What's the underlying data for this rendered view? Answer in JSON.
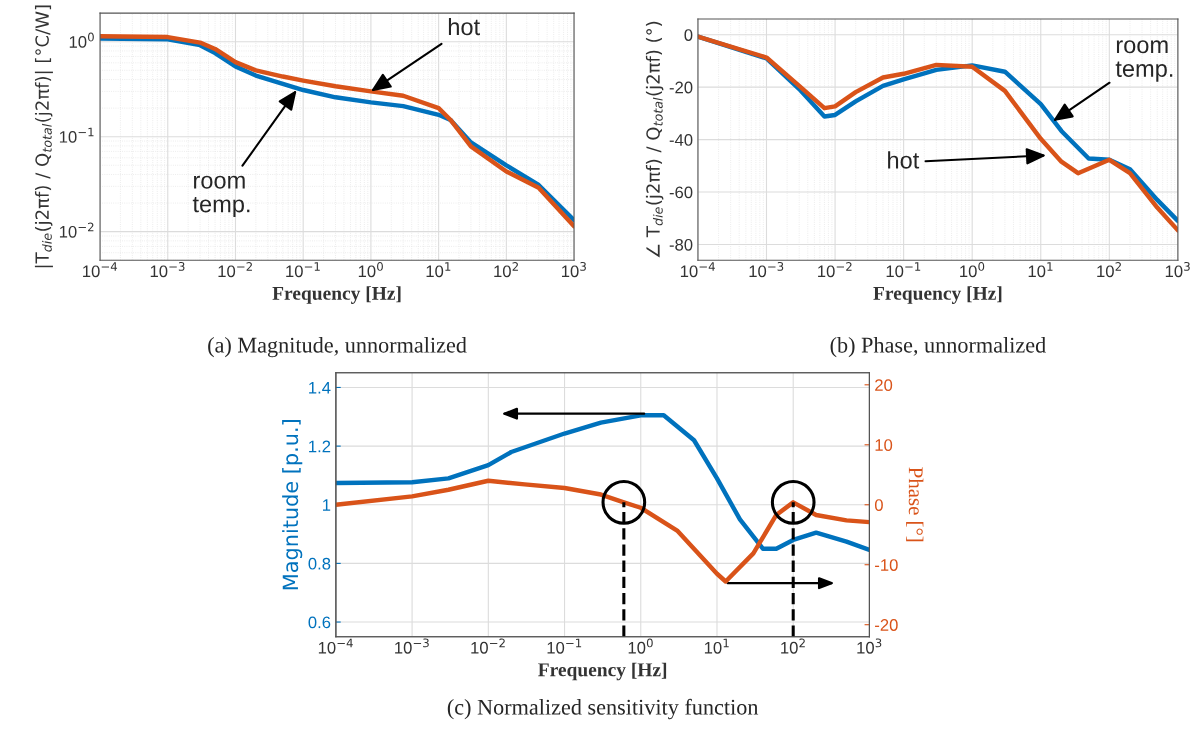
{
  "chart_data": [
    {
      "type": "line",
      "xlabel": "Frequency [Hz]",
      "ylabel": "|T$_{die}$(j2πf) / Q$_{total}$(j2πf)| [°C/W]",
      "log": "xy",
      "grid": true,
      "xlim": [
        0.0001,
        1000
      ],
      "ylim": [
        0.005,
        2
      ],
      "xticks": [
        {
          "value": 0.0001,
          "label": "10$^{−4}$"
        },
        {
          "value": 0.001,
          "label": "10$^{−3}$"
        },
        {
          "value": 0.01,
          "label": "10$^{−2}$"
        },
        {
          "value": 0.1,
          "label": "10$^{−1}$"
        },
        {
          "value": 1,
          "label": "10$^{0}$"
        },
        {
          "value": 10,
          "label": "10$^{1}$"
        },
        {
          "value": 100,
          "label": "10$^{2}$"
        },
        {
          "value": 1000,
          "label": "10$^{3}$"
        }
      ],
      "yticks": [
        {
          "value": 0.01,
          "label": "10$^{−2}$"
        },
        {
          "value": 0.1,
          "label": "10$^{−1}$"
        },
        {
          "value": 1,
          "label": "10$^{0}$"
        }
      ],
      "series": [
        {
          "color": "#0072bd",
          "x": [
            0.0001,
            0.001,
            0.003,
            0.005,
            0.01,
            0.02,
            0.05,
            0.1,
            0.3,
            1,
            3,
            10,
            15,
            30,
            100,
            300,
            1000
          ],
          "values": [
            1.08,
            1.06,
            0.92,
            0.76,
            0.55,
            0.44,
            0.36,
            0.31,
            0.26,
            0.23,
            0.21,
            0.17,
            0.15,
            0.087,
            0.05,
            0.031,
            0.0132
          ]
        },
        {
          "color": "#d95319",
          "x": [
            0.0001,
            0.001,
            0.003,
            0.005,
            0.01,
            0.02,
            0.05,
            0.1,
            0.3,
            1,
            3,
            10,
            15,
            30,
            100,
            300,
            1000
          ],
          "values": [
            1.14,
            1.12,
            0.98,
            0.84,
            0.61,
            0.5,
            0.43,
            0.39,
            0.34,
            0.3,
            0.27,
            0.2,
            0.15,
            0.079,
            0.043,
            0.029,
            0.0114
          ]
        }
      ],
      "annotations": [
        {
          "text": "hot",
          "x": 1,
          "y": 0.3
        },
        {
          "text": "room\ntemp.",
          "x": 0.08,
          "y": 0.31
        },
        "(a) Magnitude, unnormalized"
      ]
    },
    {
      "type": "line",
      "xlabel": "Frequency [Hz]",
      "ylabel": "∠ T$_{die}$(j2πf) / Q$_{total}$(j2πf) (°)",
      "log": "x",
      "grid": true,
      "xlim": [
        0.0001,
        1000
      ],
      "ylim": [
        -86,
        6
      ],
      "xticks": [
        {
          "value": 0.0001,
          "label": "10$^{−4}$"
        },
        {
          "value": 0.001,
          "label": "10$^{−3}$"
        },
        {
          "value": 0.01,
          "label": "10$^{−2}$"
        },
        {
          "value": 0.1,
          "label": "10$^{−1}$"
        },
        {
          "value": 1,
          "label": "10$^{0}$"
        },
        {
          "value": 10,
          "label": "10$^{1}$"
        },
        {
          "value": 100,
          "label": "10$^{2}$"
        },
        {
          "value": 1000,
          "label": "10$^{3}$"
        }
      ],
      "yticks": [
        -80,
        -60,
        -40,
        -20,
        0
      ],
      "series": [
        {
          "color": "#0072bd",
          "x": [
            0.0001,
            0.001,
            0.003,
            0.007,
            0.01,
            0.02,
            0.05,
            0.1,
            0.3,
            1,
            3,
            10,
            20,
            50,
            100,
            200,
            500,
            1000
          ],
          "values": [
            -0.7,
            -9,
            -20.7,
            -31.2,
            -30.6,
            -25.4,
            -19.5,
            -17,
            -13.4,
            -11.7,
            -14.1,
            -26.5,
            -36.7,
            -47.2,
            -47.7,
            -51.3,
            -63,
            -71
          ]
        },
        {
          "color": "#d95319",
          "x": [
            0.0001,
            0.001,
            0.003,
            0.007,
            0.01,
            0.02,
            0.05,
            0.1,
            0.3,
            1,
            3,
            10,
            20,
            35,
            100,
            200,
            500,
            1000
          ],
          "values": [
            -0.7,
            -8.7,
            -19.5,
            -28,
            -27.3,
            -21.9,
            -16.3,
            -14.9,
            -11.5,
            -12.2,
            -21.4,
            -39.7,
            -48.4,
            -52.8,
            -47.7,
            -52.8,
            -65.9,
            -74.6
          ]
        }
      ],
      "annotations": [
        {
          "text": "room\ntemp.",
          "x": 15,
          "y": -33
        },
        {
          "text": "hot",
          "x": 12,
          "y": -46
        },
        "(b) Phase, unnormalized"
      ]
    },
    {
      "type": "line",
      "xlabel": "Frequency [Hz]",
      "ylabel": "Magnitude [p.u.]",
      "y2label": "Phase [°]",
      "log": "x",
      "grid": true,
      "xlim": [
        0.0001,
        1000
      ],
      "ylim": [
        0.55,
        1.45
      ],
      "y2lim": [
        -22,
        22
      ],
      "xticks": [
        {
          "value": 0.0001,
          "label": "10$^{−4}$"
        },
        {
          "value": 0.001,
          "label": "10$^{−3}$"
        },
        {
          "value": 0.01,
          "label": "10$^{−2}$"
        },
        {
          "value": 0.1,
          "label": "10$^{−1}$"
        },
        {
          "value": 1,
          "label": "10$^{0}$"
        },
        {
          "value": 10,
          "label": "10$^{1}$"
        },
        {
          "value": 100,
          "label": "10$^{2}$"
        },
        {
          "value": 1000,
          "label": "10$^{3}$"
        }
      ],
      "yticks": [
        0.6,
        0.8,
        1,
        1.2,
        1.4
      ],
      "y2ticks": [
        -20,
        -10,
        0,
        10,
        20
      ],
      "series": [
        {
          "color": "#0072bd",
          "x": [
            0.0001,
            0.001,
            0.003,
            0.01,
            0.02,
            0.1,
            0.3,
            1,
            2,
            5,
            10,
            20,
            40,
            60,
            100,
            200,
            500,
            1000
          ],
          "values": [
            1.074,
            1.077,
            1.09,
            1.135,
            1.18,
            1.243,
            1.28,
            1.305,
            1.305,
            1.22,
            1.09,
            0.95,
            0.85,
            0.85,
            0.88,
            0.905,
            0.874,
            0.846
          ]
        },
        {
          "color": "#d95319",
          "axis": "y2",
          "x": [
            0.0001,
            0.001,
            0.003,
            0.01,
            0.03,
            0.1,
            0.3,
            0.6,
            1,
            3,
            10,
            13,
            30,
            60,
            100,
            200,
            500,
            1000
          ],
          "values": [
            0,
            1.4,
            2.5,
            4,
            3.4,
            2.8,
            1.7,
            0.4,
            -0.5,
            -4.3,
            -11.5,
            -12.8,
            -8.1,
            -1.7,
            0.4,
            -1.7,
            -2.6,
            -2.9
          ]
        }
      ],
      "ref_lines": [
        {
          "axis": "x",
          "value": 0.6,
          "color": "#000000",
          "line_style": "dashed"
        },
        {
          "axis": "x",
          "value": 100,
          "color": "#000000",
          "line_style": "dashed"
        }
      ],
      "annotations": [
        "(c) Normalized sensitivity function"
      ]
    }
  ]
}
